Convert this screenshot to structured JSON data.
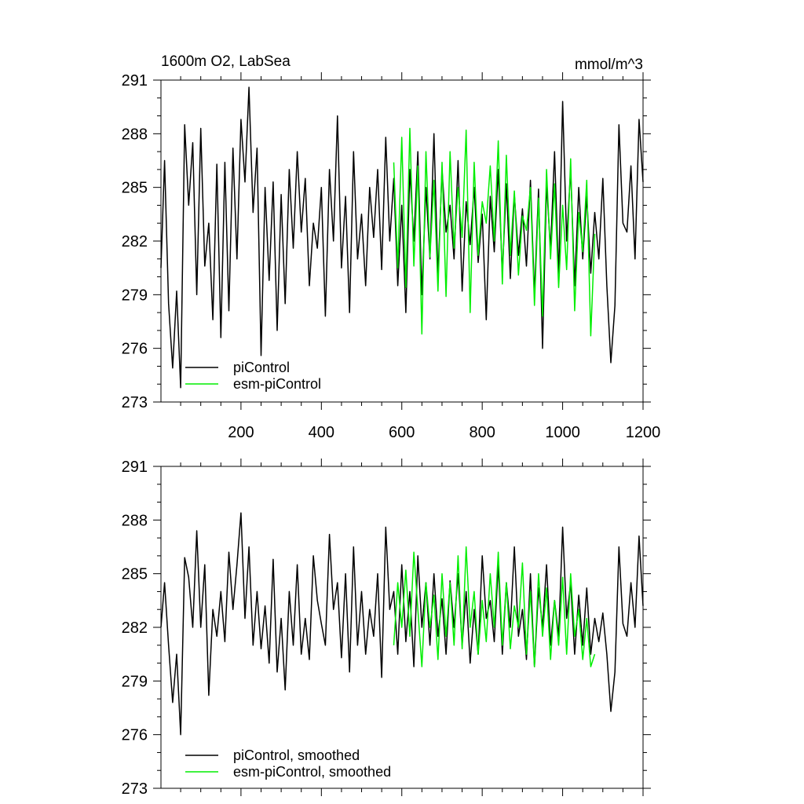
{
  "colors": {
    "piControl": "#000000",
    "esm_piControl": "#00ee00"
  },
  "chart_data": [
    {
      "type": "line",
      "title": "1600m O2, LabSea",
      "units": "mmol/m^3",
      "xlim": [
        1,
        1200
      ],
      "ylim": [
        273,
        291
      ],
      "x_ticks": [
        200,
        400,
        600,
        800,
        1000,
        1200
      ],
      "x_tick_labels": [
        "200",
        "400",
        "600",
        "800",
        "1000",
        "1200"
      ],
      "y_ticks": [
        273,
        276,
        279,
        282,
        285,
        288,
        291
      ],
      "y_tick_labels": [
        "273",
        "276",
        "279",
        "282",
        "285",
        "288",
        "291"
      ],
      "legend_position": "bottom-left",
      "series": [
        {
          "name": "piControl",
          "color": "#000000",
          "x": [
            1,
            10,
            20,
            30,
            40,
            50,
            60,
            70,
            80,
            90,
            100,
            110,
            120,
            130,
            140,
            150,
            160,
            170,
            180,
            190,
            200,
            210,
            220,
            230,
            240,
            250,
            260,
            270,
            280,
            290,
            300,
            310,
            320,
            330,
            340,
            350,
            360,
            370,
            380,
            390,
            400,
            410,
            420,
            430,
            440,
            450,
            460,
            470,
            480,
            490,
            500,
            510,
            520,
            530,
            540,
            550,
            560,
            570,
            580,
            590,
            600,
            610,
            620,
            630,
            640,
            650,
            660,
            670,
            680,
            690,
            700,
            710,
            720,
            730,
            740,
            750,
            760,
            770,
            780,
            790,
            800,
            810,
            820,
            830,
            840,
            850,
            860,
            870,
            880,
            890,
            900,
            910,
            920,
            930,
            940,
            950,
            960,
            970,
            980,
            990,
            1000,
            1010,
            1020,
            1030,
            1040,
            1050,
            1060,
            1070,
            1080,
            1090,
            1100,
            1110,
            1120,
            1130,
            1140,
            1150,
            1160,
            1170,
            1180,
            1190,
            1200
          ],
          "values": [
            280.5,
            286.5,
            278.5,
            274.9,
            279.2,
            273.8,
            288.5,
            284.0,
            287.5,
            279.0,
            288.3,
            280.6,
            283.0,
            277.6,
            286.3,
            276.6,
            286.4,
            278.1,
            287.2,
            281.0,
            288.8,
            285.3,
            290.6,
            283.6,
            287.2,
            275.6,
            285.0,
            279.8,
            285.3,
            277.0,
            284.6,
            278.5,
            286.0,
            281.6,
            287.0,
            282.5,
            285.5,
            279.5,
            283.0,
            281.6,
            285.0,
            277.8,
            286.0,
            282.0,
            289.0,
            280.5,
            284.5,
            278.0,
            287.0,
            281.0,
            283.5,
            279.5,
            285.0,
            282.2,
            286.0,
            280.4,
            287.8,
            282.0,
            285.5,
            279.5,
            284.0,
            278.0,
            286.0,
            282.0,
            287.0,
            279.0,
            285.0,
            281.0,
            288.0,
            280.0,
            286.0,
            282.5,
            284.0,
            281.0,
            286.5,
            279.2,
            284.2,
            281.8,
            285.0,
            280.8,
            283.5,
            277.6,
            284.5,
            281.4,
            286.0,
            280.2,
            285.2,
            279.9,
            284.6,
            281.2,
            283.8,
            280.6,
            285.4,
            279.0,
            284.9,
            276.0,
            285.2,
            281.5,
            287.0,
            280.0,
            289.8,
            282.0,
            286.0,
            279.5,
            285.0,
            281.0,
            284.5,
            280.2,
            283.6,
            281.0,
            285.5,
            279.5,
            275.2,
            278.4,
            288.5,
            283.0,
            282.5,
            286.2,
            281.0,
            288.8,
            285.3
          ]
        },
        {
          "name": "esm-piControl",
          "color": "#00ee00",
          "x": [
            580,
            590,
            600,
            610,
            620,
            630,
            640,
            650,
            660,
            670,
            680,
            690,
            700,
            710,
            720,
            730,
            740,
            750,
            760,
            770,
            780,
            790,
            800,
            810,
            820,
            830,
            840,
            850,
            860,
            870,
            880,
            890,
            900,
            910,
            920,
            930,
            940,
            950,
            960,
            970,
            980,
            990,
            1000,
            1010,
            1020,
            1030,
            1040,
            1050,
            1060,
            1070,
            1080
          ],
          "values": [
            286.4,
            280.5,
            287.8,
            279.4,
            288.3,
            280.6,
            286.2,
            276.8,
            287.0,
            281.1,
            285.4,
            279.2,
            286.4,
            278.9,
            287.0,
            281.6,
            285.0,
            282.2,
            288.2,
            278.0,
            286.4,
            281.2,
            284.2,
            283.0,
            286.2,
            282.0,
            287.6,
            279.6,
            286.8,
            281.2,
            284.8,
            280.1,
            283.4,
            282.6,
            285.0,
            278.4,
            284.4,
            277.8,
            286.0,
            281.0,
            285.2,
            279.4,
            284.0,
            280.4,
            286.6,
            278.1,
            283.6,
            281.4,
            285.4,
            276.7,
            282.4
          ]
        }
      ]
    },
    {
      "type": "line",
      "title": "",
      "xlim": [
        1,
        1200
      ],
      "ylim": [
        273,
        291
      ],
      "y_ticks": [
        273,
        276,
        279,
        282,
        285,
        288,
        291
      ],
      "y_tick_labels": [
        "273",
        "276",
        "279",
        "282",
        "285",
        "288",
        "291"
      ],
      "legend_position": "bottom-left",
      "series": [
        {
          "name": "piControl, smoothed",
          "color": "#000000",
          "x": [
            1,
            10,
            20,
            30,
            40,
            50,
            60,
            70,
            80,
            90,
            100,
            110,
            120,
            130,
            140,
            150,
            160,
            170,
            180,
            190,
            200,
            210,
            220,
            230,
            240,
            250,
            260,
            270,
            280,
            290,
            300,
            310,
            320,
            330,
            340,
            350,
            360,
            370,
            380,
            390,
            400,
            410,
            420,
            430,
            440,
            450,
            460,
            470,
            480,
            490,
            500,
            510,
            520,
            530,
            540,
            550,
            560,
            570,
            580,
            590,
            600,
            610,
            620,
            630,
            640,
            650,
            660,
            670,
            680,
            690,
            700,
            710,
            720,
            730,
            740,
            750,
            760,
            770,
            780,
            790,
            800,
            810,
            820,
            830,
            840,
            850,
            860,
            870,
            880,
            890,
            900,
            910,
            920,
            930,
            940,
            950,
            960,
            970,
            980,
            990,
            1000,
            1010,
            1020,
            1030,
            1040,
            1050,
            1060,
            1070,
            1080,
            1090,
            1100,
            1110,
            1120,
            1130,
            1140,
            1150,
            1160,
            1170,
            1180,
            1190,
            1200
          ],
          "values": [
            282.0,
            284.5,
            281.0,
            277.8,
            280.5,
            276.0,
            285.9,
            284.8,
            282.0,
            287.4,
            282.0,
            285.5,
            278.2,
            283.0,
            281.5,
            284.0,
            281.2,
            286.2,
            283.0,
            285.5,
            288.4,
            282.5,
            286.5,
            281.0,
            284.0,
            280.8,
            283.2,
            280.0,
            285.8,
            279.5,
            282.5,
            278.5,
            284.0,
            281.0,
            285.5,
            280.5,
            282.5,
            280.2,
            286.0,
            283.5,
            282.2,
            281.0,
            287.2,
            283.0,
            284.5,
            280.3,
            285.0,
            279.5,
            286.5,
            281.0,
            284.0,
            280.5,
            283.0,
            281.5,
            285.0,
            279.2,
            287.6,
            283.0,
            284.0,
            280.5,
            285.5,
            281.2,
            284.0,
            279.8,
            286.0,
            282.0,
            284.5,
            281.0,
            285.0,
            281.5,
            283.6,
            280.5,
            284.6,
            282.0,
            285.0,
            281.0,
            284.0,
            280.0,
            283.0,
            280.5,
            286.0,
            282.5,
            283.5,
            281.2,
            285.5,
            280.5,
            284.5,
            282.0,
            286.5,
            281.5,
            283.0,
            280.2,
            285.0,
            279.8,
            284.2,
            282.0,
            285.5,
            281.0,
            283.5,
            281.5,
            287.6,
            282.5,
            284.5,
            280.5,
            283.8,
            281.0,
            284.2,
            280.5,
            282.5,
            281.2,
            282.8,
            280.5,
            277.3,
            279.5,
            286.5,
            282.2,
            281.5,
            284.5,
            282.0,
            287.1,
            283.2
          ]
        },
        {
          "name": "esm-piControl, smoothed",
          "color": "#00ee00",
          "x": [
            580,
            590,
            600,
            610,
            620,
            630,
            640,
            650,
            660,
            670,
            680,
            690,
            700,
            710,
            720,
            730,
            740,
            750,
            760,
            770,
            780,
            790,
            800,
            810,
            820,
            830,
            840,
            850,
            860,
            870,
            880,
            890,
            900,
            910,
            920,
            930,
            940,
            950,
            960,
            970,
            980,
            990,
            1000,
            1010,
            1020,
            1030,
            1040,
            1050,
            1060,
            1070,
            1080
          ],
          "values": [
            281.0,
            284.5,
            282.0,
            285.2,
            281.5,
            286.2,
            283.0,
            279.8,
            284.5,
            282.0,
            283.8,
            280.2,
            285.0,
            281.5,
            284.5,
            281.0,
            286.0,
            280.8,
            286.5,
            282.0,
            284.0,
            280.5,
            283.5,
            281.2,
            285.0,
            282.0,
            286.2,
            281.0,
            284.5,
            280.8,
            283.2,
            282.0,
            285.6,
            280.5,
            284.0,
            279.8,
            285.0,
            281.5,
            284.2,
            280.2,
            283.5,
            281.0,
            284.8,
            280.5,
            285.0,
            281.5,
            283.0,
            280.2,
            282.5,
            279.8,
            280.5
          ]
        }
      ]
    }
  ]
}
